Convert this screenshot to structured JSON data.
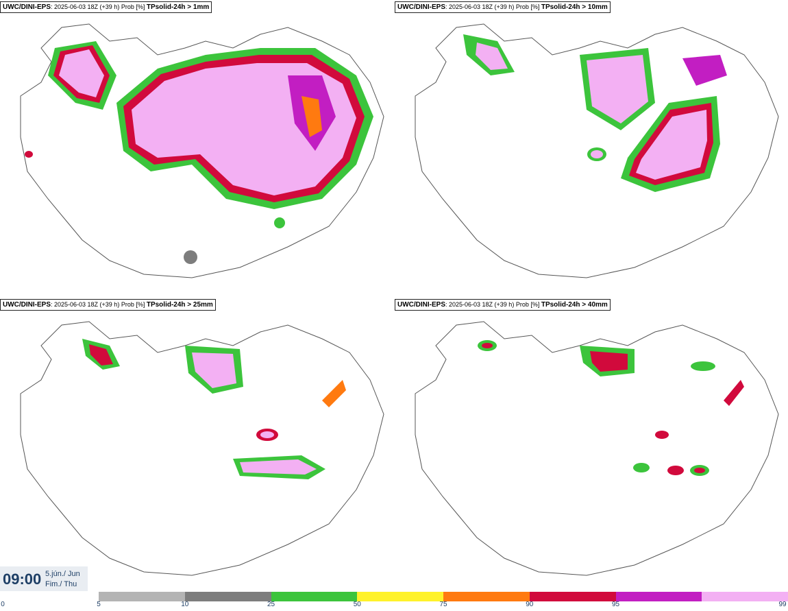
{
  "panels": [
    {
      "model": "UWC/DINI-EPS",
      "run_info": ": 2025-06-03 18Z (+39 h) Prob [%] ",
      "threshold_label": "TPsolid-24h > 1mm"
    },
    {
      "model": "UWC/DINI-EPS",
      "run_info": ": 2025-06-03 18Z (+39 h) Prob [%] ",
      "threshold_label": "TPsolid-24h > 10mm"
    },
    {
      "model": "UWC/DINI-EPS",
      "run_info": ": 2025-06-03 18Z (+39 h) Prob [%] ",
      "threshold_label": "TPsolid-24h > 25mm"
    },
    {
      "model": "UWC/DINI-EPS",
      "run_info": ": 2025-06-03 18Z (+39 h) Prob [%] ",
      "threshold_label": "TPsolid-24h > 40mm"
    }
  ],
  "valid_time": {
    "time": "09:00",
    "date_line1": "5.jún./ Jun",
    "date_line2": "Fim./ Thu"
  },
  "colorbar": {
    "labels": [
      "0",
      "5",
      "10",
      "25",
      "50",
      "75",
      "90",
      "95",
      "99"
    ],
    "colors": [
      "#b4b4b4",
      "#7d7d7d",
      "#3cc43c",
      "#fff22a",
      "#ff7a10",
      "#d10a3c",
      "#c21ec2",
      "#f3b0f3"
    ]
  }
}
